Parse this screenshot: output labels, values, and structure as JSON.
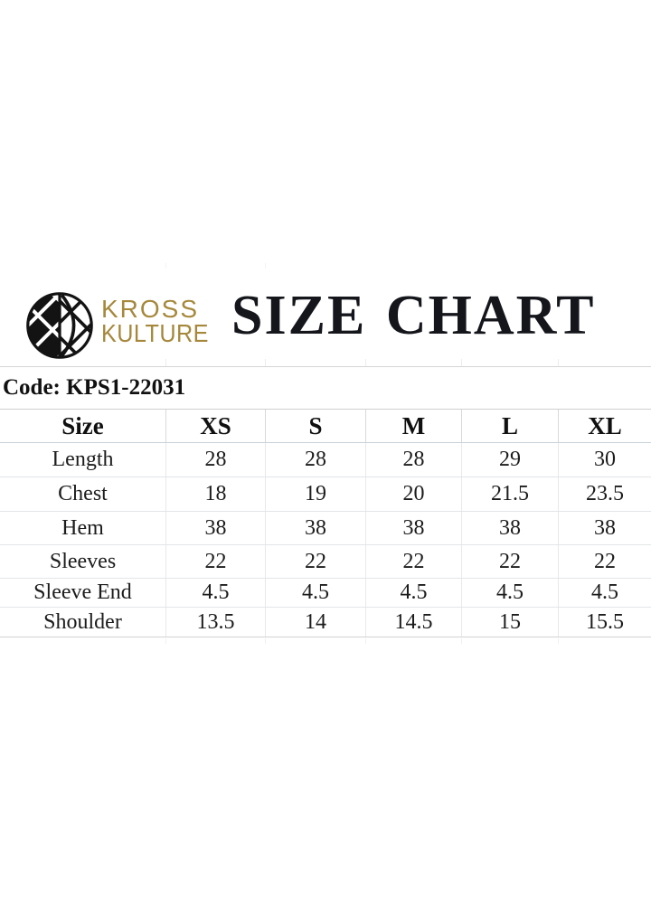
{
  "brand": {
    "logo_icon": "kross-kulture-globe-icon",
    "name_line1": "KROSS",
    "name_line2": "KULTURE"
  },
  "header": {
    "title": "SIZE CHART"
  },
  "size_chart": {
    "code_label": "Code: KPS1-22031",
    "chart_data": {
      "type": "table",
      "title": "SIZE CHART",
      "product_code": "KPS1-22031",
      "columns": [
        "Size",
        "XS",
        "S",
        "M",
        "L",
        "XL"
      ],
      "rows": [
        {
          "label": "Length",
          "values": [
            "28",
            "28",
            "28",
            "29",
            "30"
          ]
        },
        {
          "label": "Chest",
          "values": [
            "18",
            "19",
            "20",
            "21.5",
            "23.5"
          ]
        },
        {
          "label": "Hem",
          "values": [
            "38",
            "38",
            "38",
            "38",
            "38"
          ]
        },
        {
          "label": "Sleeves",
          "values": [
            "22",
            "22",
            "22",
            "22",
            "22"
          ]
        },
        {
          "label": "Sleeve End",
          "values": [
            "4.5",
            "4.5",
            "4.5",
            "4.5",
            "4.5"
          ]
        },
        {
          "label": "Shoulder",
          "values": [
            "13.5",
            "14",
            "14.5",
            "15",
            "15.5"
          ]
        }
      ]
    }
  },
  "colors": {
    "brand_gold": "#a6883c",
    "title_black": "#14161c",
    "grid_gray": "#d9d9d9"
  }
}
